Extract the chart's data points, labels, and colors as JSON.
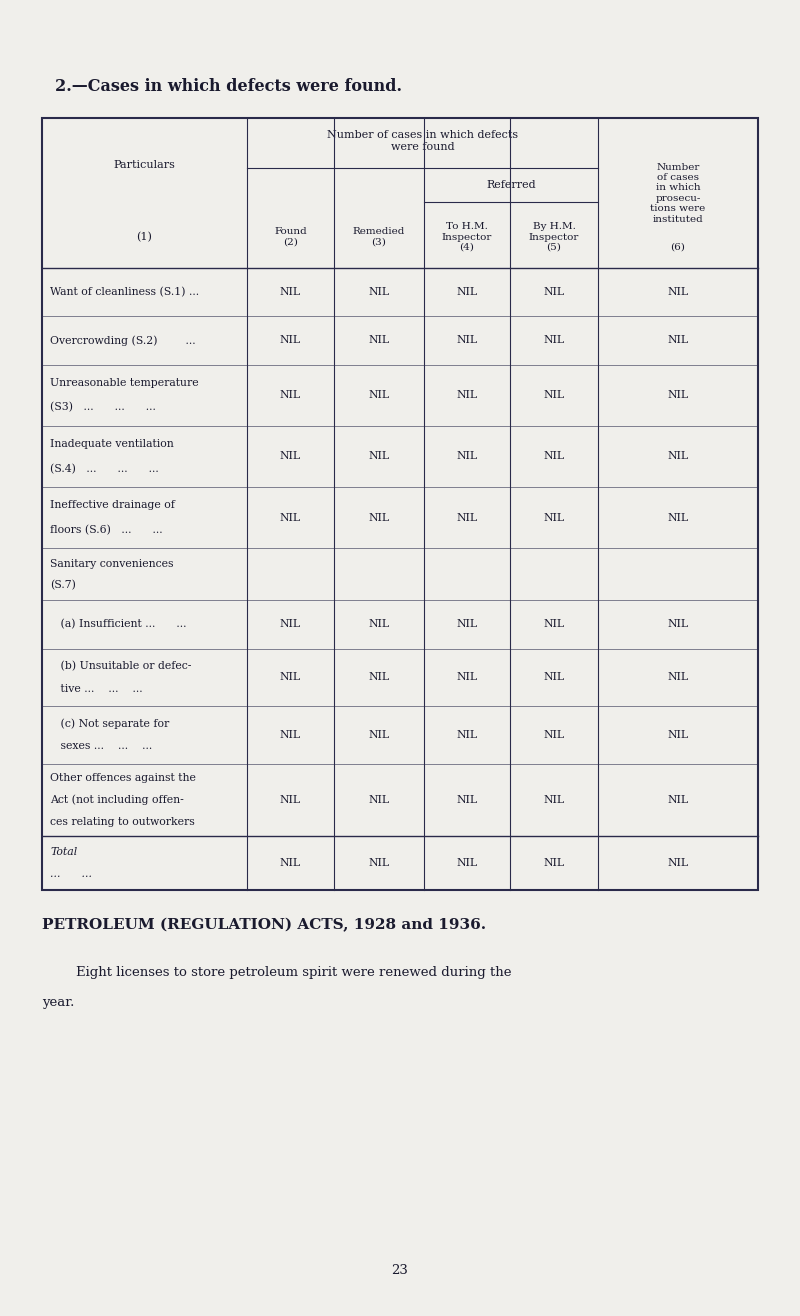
{
  "bg_color": "#f0efeb",
  "text_color": "#1a1a2e",
  "border_color": "#2a2a4a",
  "page_title": "2.—Cases in which defects were found.",
  "rows": [
    {
      "label1": "Want of cleanliness (S.1) ...",
      "label2": "",
      "vals": [
        "NIL",
        "NIL",
        "NIL",
        "NIL",
        "NIL"
      ]
    },
    {
      "label1": "Overcrowding (S.2)        ...",
      "label2": "",
      "vals": [
        "NIL",
        "NIL",
        "NIL",
        "NIL",
        "NIL"
      ]
    },
    {
      "label1": "Unreasonable temperature",
      "label2": "(S3)   ...      ...      ...",
      "vals": [
        "NIL",
        "NIL",
        "NIL",
        "NIL",
        "NIL"
      ]
    },
    {
      "label1": "Inadequate ventilation",
      "label2": "(S.4)   ...      ...      ...",
      "vals": [
        "NIL",
        "NIL",
        "NIL",
        "NIL",
        "NIL"
      ]
    },
    {
      "label1": "Ineffective drainage of",
      "label2": "floors (S.6)   ...      ...",
      "vals": [
        "NIL",
        "NIL",
        "NIL",
        "NIL",
        "NIL"
      ]
    },
    {
      "label1": "Sanitary conveniences",
      "label2": "(S.7)",
      "vals": [
        null,
        null,
        null,
        null,
        null
      ]
    },
    {
      "label1": "   (a) Insufficient ...      ...",
      "label2": "",
      "vals": [
        "NIL",
        "NIL",
        "NIL",
        "NIL",
        "NIL"
      ]
    },
    {
      "label1": "   (b) Unsuitable or defec-",
      "label2": "   tive ...    ...    ...",
      "vals": [
        "NIL",
        "NIL",
        "NIL",
        "NIL",
        "NIL"
      ]
    },
    {
      "label1": "   (c) Not separate for",
      "label2": "   sexes ...    ...    ...",
      "vals": [
        "NIL",
        "NIL",
        "NIL",
        "NIL",
        "NIL"
      ]
    },
    {
      "label1": "Other offences against the",
      "label2": "Act (not including offen-",
      "label3": "ces relating to outworkers",
      "vals": [
        "NIL",
        "NIL",
        "NIL",
        "NIL",
        "NIL"
      ]
    },
    {
      "label1": "Total",
      "label2": "...      ...",
      "vals": [
        "NIL",
        "NIL",
        "NIL",
        "NIL",
        "NIL"
      ],
      "is_total": true
    }
  ],
  "petroleum_title": "PETROLEUM (REGULATION) ACTS, 1928 and 1936.",
  "petroleum_body1": "        Eight licenses to store petroleum spirit were renewed during the",
  "petroleum_body2": "year.",
  "page_number": "23"
}
